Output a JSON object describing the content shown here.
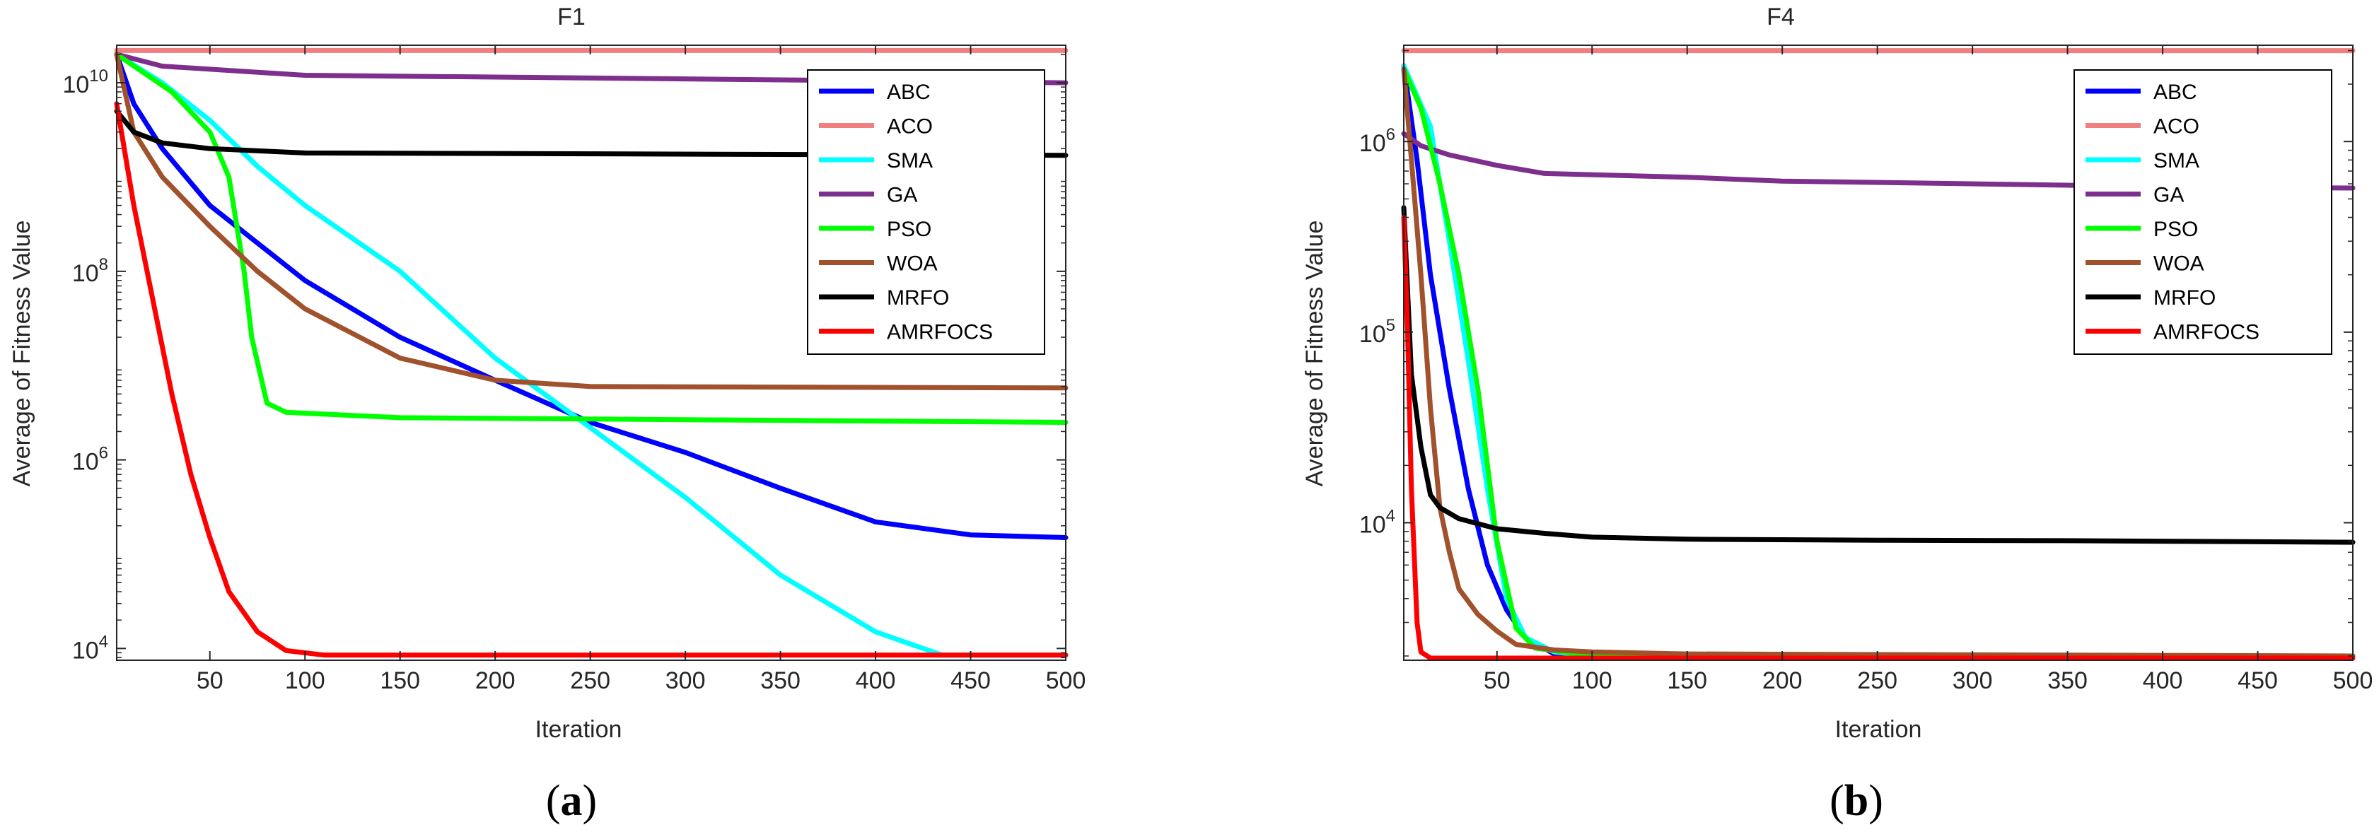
{
  "series_colors": {
    "ABC": "#0000ff",
    "ACO": "#f08080",
    "SMA": "#00ffff",
    "GA": "#7e2f8e",
    "PSO": "#00ff00",
    "WOA": "#a0522d",
    "MRFO": "#000000",
    "AMRFOCS": "#ff0000"
  },
  "chart_data": [
    {
      "type": "line",
      "title": "F1",
      "xlabel": "Iteration",
      "ylabel": "Average of Fitness Value",
      "yscale": "log",
      "xlim": [
        1,
        500
      ],
      "ylim": [
        7500,
        25000000000
      ],
      "xticks": [
        50,
        100,
        150,
        200,
        250,
        300,
        350,
        400,
        450,
        500
      ],
      "yticks": [
        {
          "value": 10000,
          "base": "10",
          "exp": "4"
        },
        {
          "value": 1000000,
          "base": "10",
          "exp": "6"
        },
        {
          "value": 100000000,
          "base": "10",
          "exp": "8"
        },
        {
          "value": 10000000000,
          "base": "10",
          "exp": "10"
        }
      ],
      "caption": {
        "open": "(",
        "letter": "a",
        "close": ")"
      },
      "legend_position": "top-right",
      "series": [
        {
          "name": "ABC",
          "points": [
            [
              1,
              20000000000
            ],
            [
              10,
              6000000000
            ],
            [
              25,
              2000000000
            ],
            [
              50,
              500000000
            ],
            [
              75,
              200000000
            ],
            [
              100,
              80000000
            ],
            [
              150,
              20000000
            ],
            [
              200,
              7000000
            ],
            [
              250,
              2500000
            ],
            [
              300,
              1200000
            ],
            [
              350,
              500000
            ],
            [
              400,
              220000
            ],
            [
              450,
              160000
            ],
            [
              500,
              150000
            ]
          ]
        },
        {
          "name": "ACO",
          "points": [
            [
              1,
              22000000000
            ],
            [
              500,
              22000000000
            ]
          ]
        },
        {
          "name": "SMA",
          "points": [
            [
              1,
              20000000000
            ],
            [
              25,
              10000000000
            ],
            [
              50,
              4000000000
            ],
            [
              75,
              1300000000
            ],
            [
              100,
              500000000
            ],
            [
              150,
              100000000
            ],
            [
              200,
              12000000
            ],
            [
              250,
              2200000
            ],
            [
              300,
              400000
            ],
            [
              350,
              60000
            ],
            [
              400,
              15000
            ],
            [
              435,
              8500
            ],
            [
              500,
              8500
            ]
          ]
        },
        {
          "name": "GA",
          "points": [
            [
              1,
              20000000000
            ],
            [
              25,
              15000000000
            ],
            [
              100,
              12000000000
            ],
            [
              300,
              11000000000
            ],
            [
              500,
              10000000000
            ]
          ]
        },
        {
          "name": "PSO",
          "points": [
            [
              1,
              20000000000
            ],
            [
              30,
              8000000000
            ],
            [
              50,
              3000000000
            ],
            [
              60,
              1000000000
            ],
            [
              68,
              100000000
            ],
            [
              72,
              20000000
            ],
            [
              80,
              4000000
            ],
            [
              90,
              3200000
            ],
            [
              150,
              2800000
            ],
            [
              500,
              2500000
            ]
          ]
        },
        {
          "name": "WOA",
          "points": [
            [
              1,
              20000000000
            ],
            [
              10,
              3000000000
            ],
            [
              25,
              1000000000
            ],
            [
              50,
              300000000
            ],
            [
              75,
              100000000
            ],
            [
              100,
              40000000
            ],
            [
              150,
              12000000
            ],
            [
              200,
              7000000
            ],
            [
              250,
              6000000
            ],
            [
              500,
              5800000
            ]
          ]
        },
        {
          "name": "MRFO",
          "points": [
            [
              1,
              5000000000
            ],
            [
              10,
              3000000000
            ],
            [
              25,
              2300000000
            ],
            [
              50,
              2000000000
            ],
            [
              100,
              1800000000
            ],
            [
              500,
              1700000000
            ]
          ]
        },
        {
          "name": "AMRFOCS",
          "points": [
            [
              1,
              6000000000
            ],
            [
              10,
              500000000
            ],
            [
              20,
              50000000
            ],
            [
              30,
              5000000
            ],
            [
              40,
              700000
            ],
            [
              50,
              150000
            ],
            [
              60,
              40000
            ],
            [
              75,
              15000
            ],
            [
              90,
              9500
            ],
            [
              110,
              8500
            ],
            [
              500,
              8500
            ]
          ]
        }
      ]
    },
    {
      "type": "line",
      "title": "F4",
      "xlabel": "Iteration",
      "ylabel": "Average of Fitness Value",
      "yscale": "log",
      "xlim": [
        1,
        500
      ],
      "ylim": [
        1900,
        3200000
      ],
      "xticks": [
        50,
        100,
        150,
        200,
        250,
        300,
        350,
        400,
        450,
        500
      ],
      "yticks": [
        {
          "value": 10000,
          "base": "10",
          "exp": "4"
        },
        {
          "value": 100000,
          "base": "10",
          "exp": "5"
        },
        {
          "value": 1000000,
          "base": "10",
          "exp": "6"
        }
      ],
      "caption": {
        "open": "(",
        "letter": "b",
        "close": ")"
      },
      "legend_position": "top-right",
      "series": [
        {
          "name": "ABC",
          "points": [
            [
              1,
              2500000
            ],
            [
              8,
              800000
            ],
            [
              15,
              200000
            ],
            [
              25,
              50000
            ],
            [
              35,
              15000
            ],
            [
              45,
              6000
            ],
            [
              55,
              3500
            ],
            [
              65,
              2500
            ],
            [
              80,
              2050
            ],
            [
              100,
              2000
            ],
            [
              500,
              2000
            ]
          ]
        },
        {
          "name": "ACO",
          "points": [
            [
              1,
              3000000
            ],
            [
              500,
              3000000
            ]
          ]
        },
        {
          "name": "SMA",
          "points": [
            [
              1,
              2500000
            ],
            [
              15,
              1200000
            ],
            [
              25,
              300000
            ],
            [
              35,
              70000
            ],
            [
              45,
              15000
            ],
            [
              55,
              4000
            ],
            [
              65,
              2500
            ],
            [
              80,
              2100
            ],
            [
              100,
              2000
            ],
            [
              500,
              2000
            ]
          ]
        },
        {
          "name": "GA",
          "points": [
            [
              1,
              1100000
            ],
            [
              10,
              950000
            ],
            [
              25,
              850000
            ],
            [
              50,
              750000
            ],
            [
              75,
              680000
            ],
            [
              150,
              650000
            ],
            [
              200,
              620000
            ],
            [
              300,
              600000
            ],
            [
              400,
              580000
            ],
            [
              500,
              570000
            ]
          ]
        },
        {
          "name": "PSO",
          "points": [
            [
              1,
              2400000
            ],
            [
              10,
              1500000
            ],
            [
              20,
              600000
            ],
            [
              30,
              200000
            ],
            [
              40,
              50000
            ],
            [
              50,
              8000
            ],
            [
              60,
              2800
            ],
            [
              70,
              2200
            ],
            [
              100,
              2000
            ],
            [
              500,
              2000
            ]
          ]
        },
        {
          "name": "WOA",
          "points": [
            [
              1,
              2400000
            ],
            [
              5,
              800000
            ],
            [
              10,
              200000
            ],
            [
              15,
              40000
            ],
            [
              20,
              12000
            ],
            [
              25,
              7000
            ],
            [
              30,
              4500
            ],
            [
              40,
              3300
            ],
            [
              50,
              2700
            ],
            [
              60,
              2300
            ],
            [
              80,
              2150
            ],
            [
              100,
              2100
            ],
            [
              150,
              2050
            ],
            [
              500,
              2000
            ]
          ]
        },
        {
          "name": "MRFO",
          "points": [
            [
              1,
              450000
            ],
            [
              5,
              60000
            ],
            [
              10,
              25000
            ],
            [
              15,
              14000
            ],
            [
              20,
              12000
            ],
            [
              30,
              10500
            ],
            [
              50,
              9300
            ],
            [
              75,
              8800
            ],
            [
              100,
              8400
            ],
            [
              150,
              8200
            ],
            [
              250,
              8100
            ],
            [
              350,
              8050
            ],
            [
              500,
              7900
            ]
          ]
        },
        {
          "name": "AMRFOCS",
          "points": [
            [
              1,
              400000
            ],
            [
              3,
              100000
            ],
            [
              5,
              15000
            ],
            [
              8,
              3000
            ],
            [
              10,
              2100
            ],
            [
              15,
              1950
            ],
            [
              500,
              1950
            ]
          ]
        }
      ]
    }
  ]
}
